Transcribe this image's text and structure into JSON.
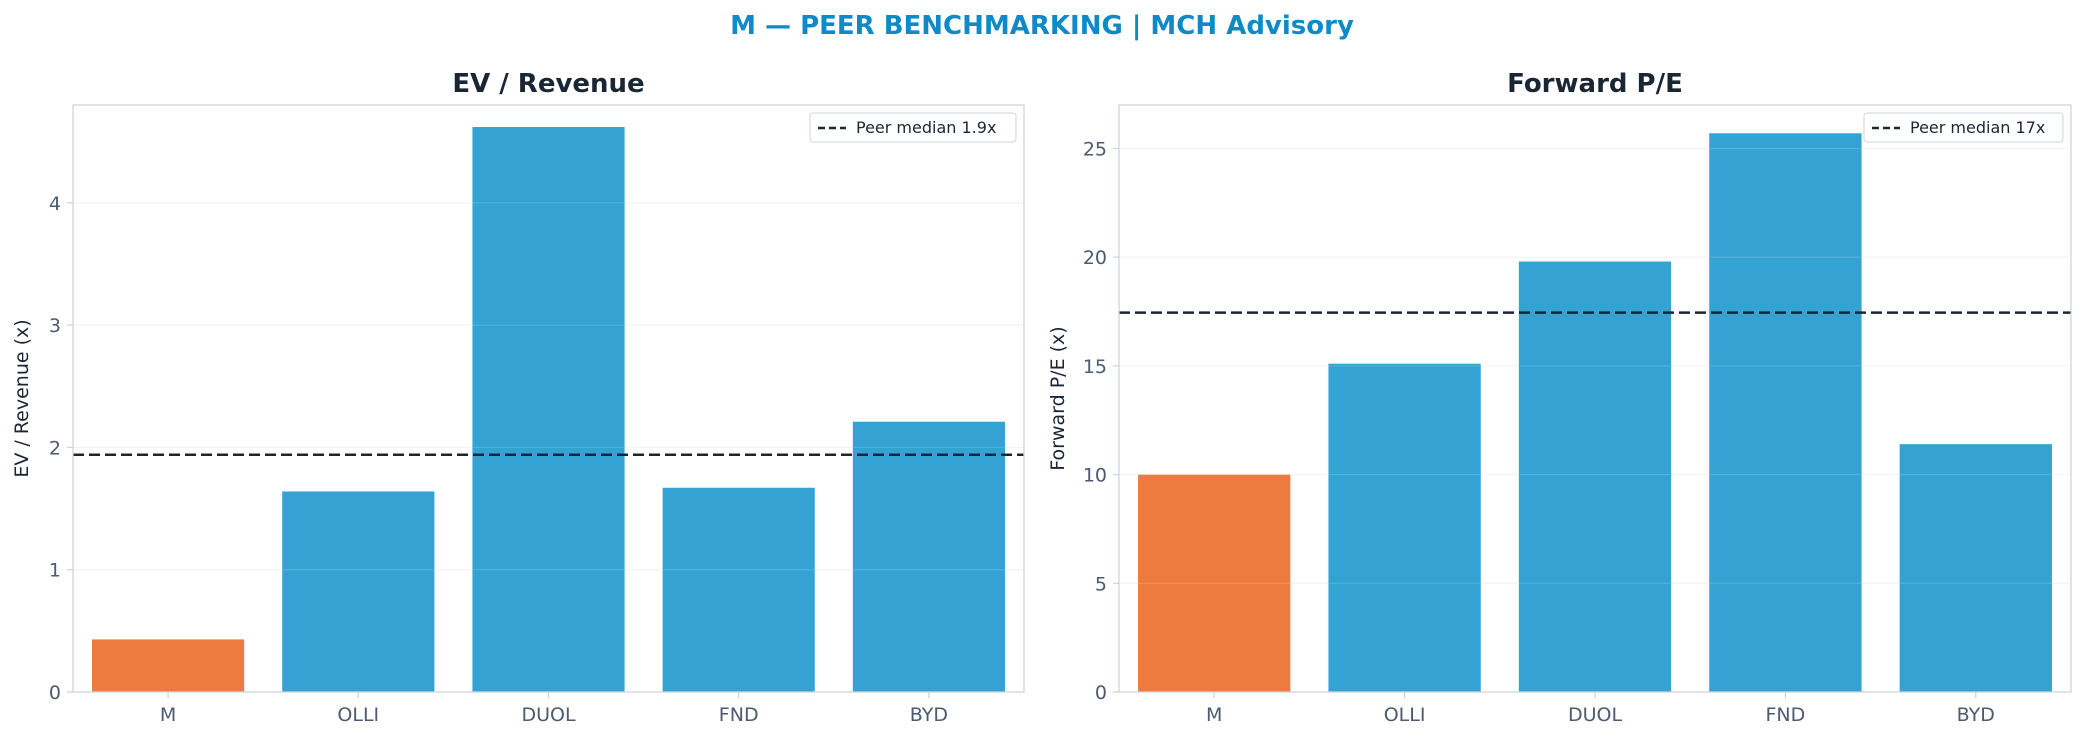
{
  "suptitle": "M — PEER BENCHMARKING | MCH Advisory",
  "colors": {
    "suptitle": "#0e8ac8",
    "highlight": "#ed7b40",
    "peer": "#34a3d4",
    "median_line": "#1b2635",
    "title": "#1b2635",
    "tick_label": "#4d5a6f",
    "axis_label": "#1b2635",
    "spine": "#cfd4da",
    "grid": "#eef0f3"
  },
  "chart_data": [
    {
      "type": "bar",
      "title": "EV / Revenue",
      "xlabel": "",
      "ylabel": "EV / Revenue (x)",
      "categories": [
        "M",
        "OLLI",
        "DUOL",
        "FND",
        "BYD"
      ],
      "values": [
        0.43,
        1.64,
        4.62,
        1.67,
        2.21
      ],
      "highlight_index": 0,
      "ylim": [
        0,
        4.8
      ],
      "yticks": [
        0,
        1,
        2,
        3,
        4
      ],
      "ytick_labels": [
        "0",
        "1",
        "2",
        "3",
        "4"
      ],
      "reference_line": {
        "value": 1.94,
        "label": "Peer median 1.9x",
        "style": "dashed"
      },
      "grid": true,
      "legend": "top-right"
    },
    {
      "type": "bar",
      "title": "Forward P/E",
      "xlabel": "",
      "ylabel": "Forward P/E (x)",
      "categories": [
        "M",
        "OLLI",
        "DUOL",
        "FND",
        "BYD"
      ],
      "values": [
        10.0,
        15.1,
        19.8,
        25.7,
        11.4
      ],
      "highlight_index": 0,
      "ylim": [
        0,
        27
      ],
      "yticks": [
        0,
        5,
        10,
        15,
        20,
        25
      ],
      "ytick_labels": [
        "0",
        "5",
        "10",
        "15",
        "20",
        "25"
      ],
      "reference_line": {
        "value": 17.45,
        "label": "Peer median 17x",
        "style": "dashed"
      },
      "grid": true,
      "legend": "top-right"
    }
  ]
}
